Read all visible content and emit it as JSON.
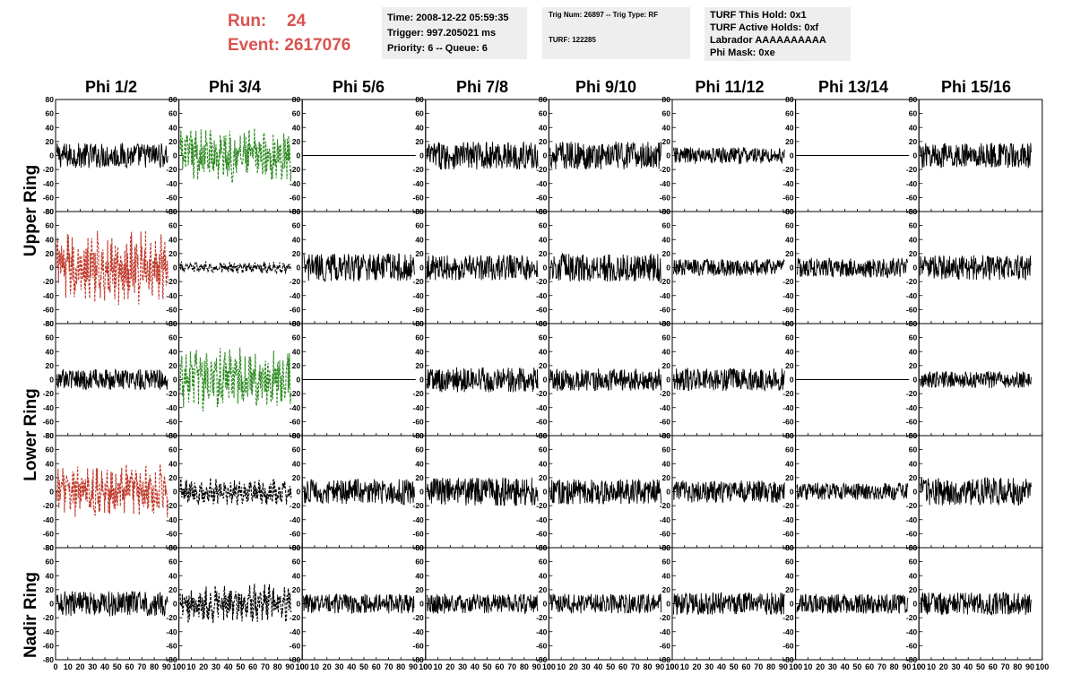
{
  "header": {
    "run_label": "Run:",
    "run_value": "24",
    "event_label": "Event:",
    "event_value": "2617076",
    "run_color": "#d9534f"
  },
  "info": {
    "time": "Time: 2008-12-22 05:59:35",
    "trigger": "Trigger: 997.205021 ms",
    "priority": "Priority: 6 -- Queue: 6",
    "trig_num": "Trig Num: 26897 -- Trig Type: RF",
    "turf": "TURF: 122285",
    "turf_hold": "TURF This Hold: 0x1",
    "turf_active": "TURF Active Holds: 0xf",
    "labrador": "Labrador AAAAAAAAAA",
    "phi_mask": "Phi Mask: 0xe"
  },
  "columns": [
    "Phi 1/2",
    "Phi 3/4",
    "Phi 5/6",
    "Phi 7/8",
    "Phi 9/10",
    "Phi 11/12",
    "Phi 13/14",
    "Phi 15/16"
  ],
  "rings": [
    "Upper Ring",
    "Lower Ring",
    "Nadir Ring"
  ],
  "colors": {
    "normal": "#000000",
    "red": "#c0392b",
    "green": "#2e8b22"
  },
  "chart_data": {
    "type": "line",
    "title": "",
    "xlabel": "",
    "ylabel": "",
    "xlim": [
      0,
      100
    ],
    "ylim": [
      -80,
      80
    ],
    "x_ticks": [
      0,
      10,
      20,
      30,
      40,
      50,
      60,
      70,
      80,
      90,
      100
    ],
    "x_tick_labels": [
      "0",
      "10",
      "20",
      "30",
      "40",
      "50",
      "60",
      "70",
      "80",
      "90",
      "100"
    ],
    "y_ticks": [
      -80,
      -60,
      -40,
      -20,
      0,
      20,
      40,
      60,
      80
    ],
    "y_tick_labels": [
      "-80",
      "-60",
      "-40",
      "-20",
      "0",
      "20",
      "40",
      "60",
      "80"
    ],
    "panel_rows": 5,
    "panel_cols": 8,
    "panels": [
      {
        "row": 0,
        "col": 0,
        "style": "solid",
        "color": "normal",
        "amplitude": 18
      },
      {
        "row": 0,
        "col": 1,
        "style": "dashed",
        "color": "green",
        "amplitude": 28
      },
      {
        "row": 0,
        "col": 2,
        "style": "flat",
        "color": "normal",
        "amplitude": 0
      },
      {
        "row": 0,
        "col": 3,
        "style": "solid",
        "color": "normal",
        "amplitude": 20
      },
      {
        "row": 0,
        "col": 4,
        "style": "solid",
        "color": "normal",
        "amplitude": 20
      },
      {
        "row": 0,
        "col": 5,
        "style": "solid",
        "color": "normal",
        "amplitude": 12
      },
      {
        "row": 0,
        "col": 6,
        "style": "flat",
        "color": "normal",
        "amplitude": 0
      },
      {
        "row": 0,
        "col": 7,
        "style": "solid",
        "color": "normal",
        "amplitude": 18
      },
      {
        "row": 1,
        "col": 0,
        "style": "dashed",
        "color": "red",
        "amplitude": 38
      },
      {
        "row": 1,
        "col": 1,
        "style": "dashed",
        "color": "normal",
        "amplitude": 6
      },
      {
        "row": 1,
        "col": 2,
        "style": "solid",
        "color": "normal",
        "amplitude": 20
      },
      {
        "row": 1,
        "col": 3,
        "style": "solid",
        "color": "normal",
        "amplitude": 18
      },
      {
        "row": 1,
        "col": 4,
        "style": "solid",
        "color": "normal",
        "amplitude": 20
      },
      {
        "row": 1,
        "col": 5,
        "style": "solid",
        "color": "normal",
        "amplitude": 12
      },
      {
        "row": 1,
        "col": 6,
        "style": "solid",
        "color": "normal",
        "amplitude": 14
      },
      {
        "row": 1,
        "col": 7,
        "style": "solid",
        "color": "normal",
        "amplitude": 18
      },
      {
        "row": 2,
        "col": 0,
        "style": "solid",
        "color": "normal",
        "amplitude": 15
      },
      {
        "row": 2,
        "col": 1,
        "style": "dashed",
        "color": "green",
        "amplitude": 32
      },
      {
        "row": 2,
        "col": 2,
        "style": "flat",
        "color": "normal",
        "amplitude": 0
      },
      {
        "row": 2,
        "col": 3,
        "style": "solid",
        "color": "normal",
        "amplitude": 18
      },
      {
        "row": 2,
        "col": 4,
        "style": "solid",
        "color": "normal",
        "amplitude": 16
      },
      {
        "row": 2,
        "col": 5,
        "style": "solid",
        "color": "normal",
        "amplitude": 16
      },
      {
        "row": 2,
        "col": 6,
        "style": "flat",
        "color": "normal",
        "amplitude": 0
      },
      {
        "row": 2,
        "col": 7,
        "style": "solid",
        "color": "normal",
        "amplitude": 12
      },
      {
        "row": 3,
        "col": 0,
        "style": "dashed",
        "color": "red",
        "amplitude": 28
      },
      {
        "row": 3,
        "col": 1,
        "style": "dashed",
        "color": "normal",
        "amplitude": 14
      },
      {
        "row": 3,
        "col": 2,
        "style": "solid",
        "color": "normal",
        "amplitude": 18
      },
      {
        "row": 3,
        "col": 3,
        "style": "solid",
        "color": "normal",
        "amplitude": 20
      },
      {
        "row": 3,
        "col": 4,
        "style": "solid",
        "color": "normal",
        "amplitude": 18
      },
      {
        "row": 3,
        "col": 5,
        "style": "solid",
        "color": "normal",
        "amplitude": 16
      },
      {
        "row": 3,
        "col": 6,
        "style": "solid",
        "color": "normal",
        "amplitude": 12
      },
      {
        "row": 3,
        "col": 7,
        "style": "solid",
        "color": "normal",
        "amplitude": 20
      },
      {
        "row": 4,
        "col": 0,
        "style": "solid",
        "color": "normal",
        "amplitude": 18
      },
      {
        "row": 4,
        "col": 1,
        "style": "dashed",
        "color": "normal",
        "amplitude": 20
      },
      {
        "row": 4,
        "col": 2,
        "style": "solid",
        "color": "normal",
        "amplitude": 14
      },
      {
        "row": 4,
        "col": 3,
        "style": "solid",
        "color": "normal",
        "amplitude": 14
      },
      {
        "row": 4,
        "col": 4,
        "style": "solid",
        "color": "normal",
        "amplitude": 14
      },
      {
        "row": 4,
        "col": 5,
        "style": "solid",
        "color": "normal",
        "amplitude": 16
      },
      {
        "row": 4,
        "col": 6,
        "style": "solid",
        "color": "normal",
        "amplitude": 14
      },
      {
        "row": 4,
        "col": 7,
        "style": "solid",
        "color": "normal",
        "amplitude": 16
      }
    ]
  }
}
